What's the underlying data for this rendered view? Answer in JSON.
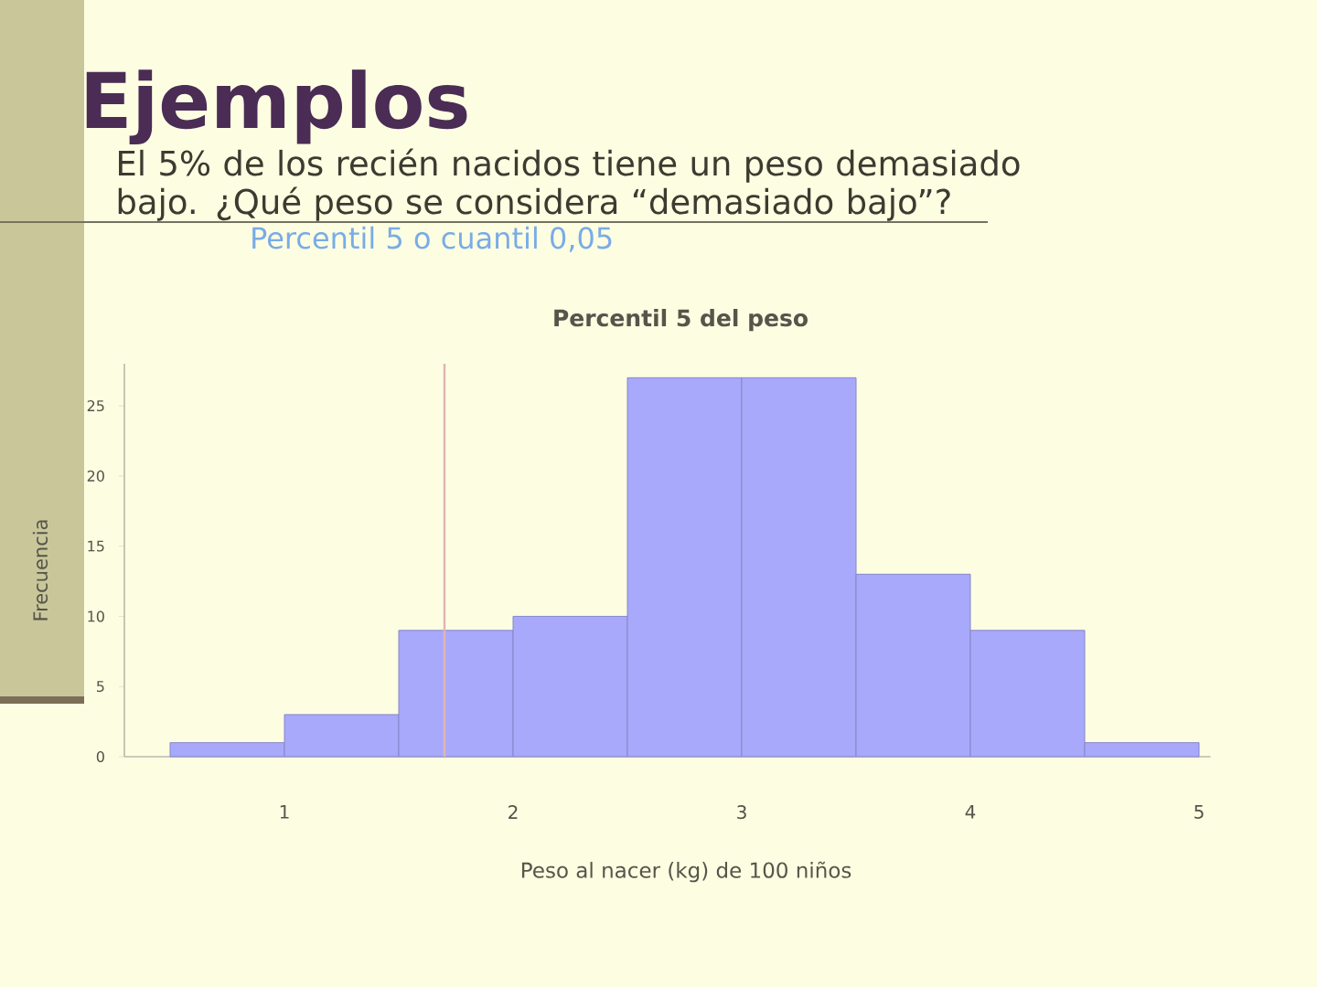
{
  "chart_data": {
    "type": "histogram",
    "title": "Percentil 5 del peso",
    "xlabel": "Peso al nacer (kg) de 100 niños",
    "ylabel": "Frecuencia",
    "bins": [
      0.5,
      1,
      1.5,
      2,
      2.5,
      3,
      3.5,
      4,
      4.5,
      5
    ],
    "values": [
      1,
      3,
      9,
      10,
      27,
      27,
      13,
      9,
      1
    ],
    "color": "#a9a9fb",
    "xlim": [
      0.3,
      5.05
    ],
    "ylim": [
      0,
      28
    ],
    "xticks": [
      1,
      2,
      3,
      4,
      5
    ],
    "yticks": [
      0,
      5,
      10,
      15,
      20,
      25
    ],
    "ref_lines": [
      {
        "axis": "x",
        "value": 1.7,
        "color": "#e0b4b4"
      }
    ],
    "annotations": [
      "Ejemplos",
      "El 5% de los recién nacidos tiene un peso demasiado bajo. ¿Qué peso se considera “demasiado bajo”?",
      "Percentil 5 o cuantil 0,05"
    ]
  }
}
